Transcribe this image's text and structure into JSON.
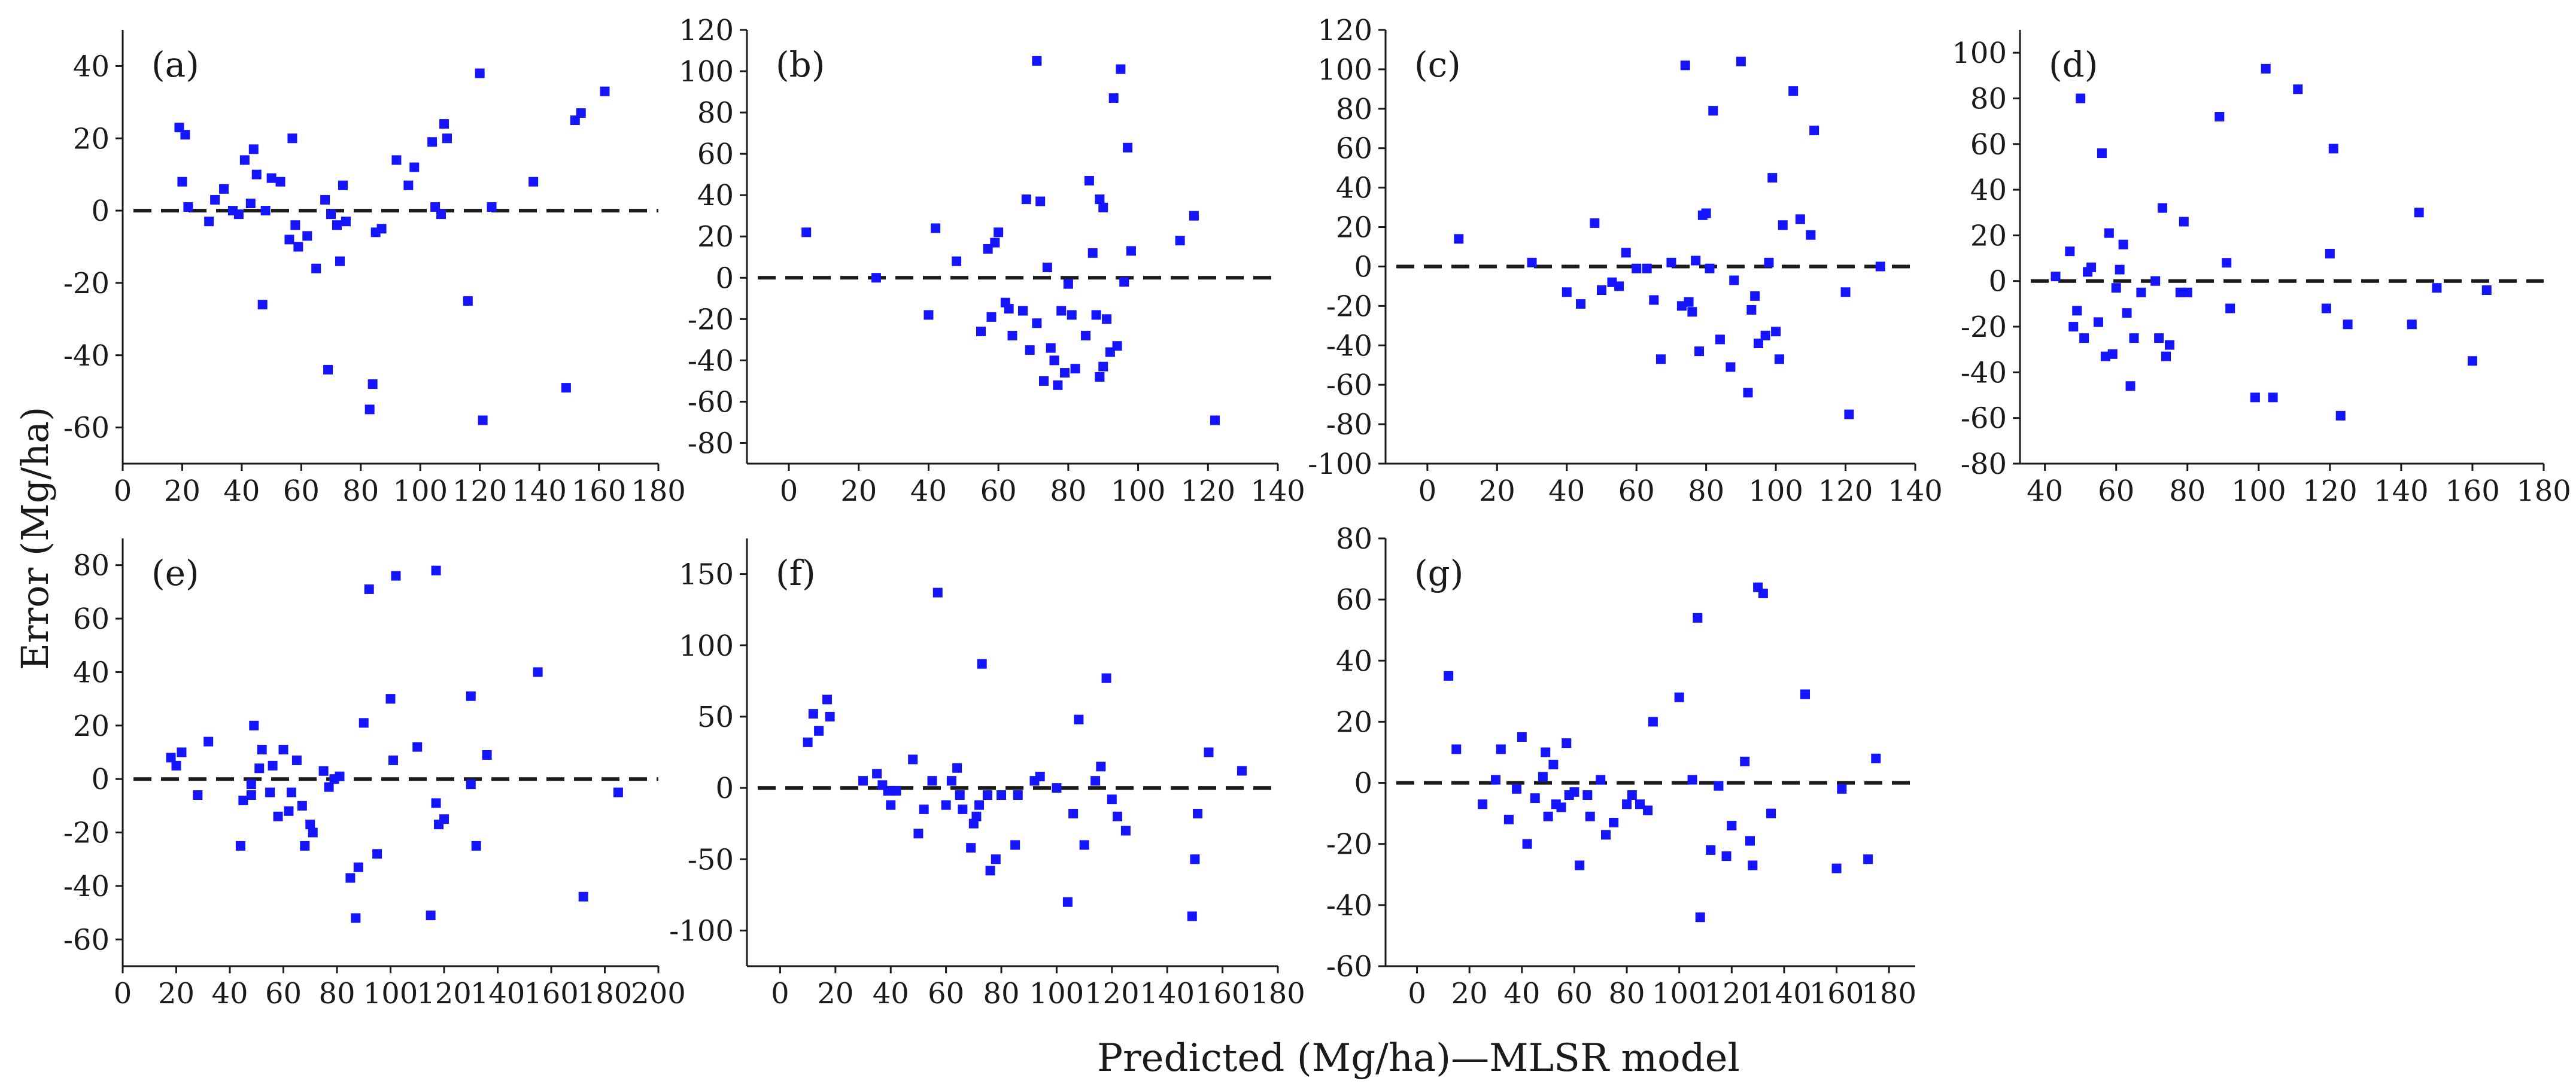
{
  "figure": {
    "ylabel": "Error (Mg/ha)",
    "xlabel": "Predicted (Mg/ha)—MLSR model",
    "colors": {
      "marker": "#1414ff",
      "axis": "#1a1a1a",
      "zero_line": "#1a1a1a"
    }
  },
  "chart_data": [
    {
      "type": "scatter",
      "title": "(a)",
      "xlim": [
        0,
        180
      ],
      "ylim": [
        -70,
        50
      ],
      "xticks": [
        0,
        20,
        40,
        60,
        80,
        100,
        120,
        140,
        160,
        180
      ],
      "yticks": [
        -60,
        -40,
        -20,
        0,
        20,
        40
      ],
      "reference_line": 0,
      "points": [
        [
          19,
          23
        ],
        [
          21,
          21
        ],
        [
          20,
          8
        ],
        [
          22,
          1
        ],
        [
          29,
          -3
        ],
        [
          31,
          3
        ],
        [
          34,
          6
        ],
        [
          37,
          0
        ],
        [
          39,
          -1
        ],
        [
          41,
          14
        ],
        [
          43,
          2
        ],
        [
          44,
          17
        ],
        [
          45,
          10
        ],
        [
          47,
          -26
        ],
        [
          48,
          0
        ],
        [
          50,
          9
        ],
        [
          53,
          8
        ],
        [
          56,
          -8
        ],
        [
          57,
          20
        ],
        [
          58,
          -4
        ],
        [
          59,
          -10
        ],
        [
          62,
          -7
        ],
        [
          65,
          -16
        ],
        [
          68,
          3
        ],
        [
          69,
          -44
        ],
        [
          70,
          -1
        ],
        [
          72,
          -4
        ],
        [
          73,
          -14
        ],
        [
          74,
          7
        ],
        [
          75,
          -3
        ],
        [
          83,
          -55
        ],
        [
          84,
          -48
        ],
        [
          85,
          -6
        ],
        [
          87,
          -5
        ],
        [
          92,
          14
        ],
        [
          96,
          7
        ],
        [
          98,
          12
        ],
        [
          104,
          19
        ],
        [
          105,
          1
        ],
        [
          107,
          -1
        ],
        [
          108,
          24
        ],
        [
          109,
          20
        ],
        [
          116,
          -25
        ],
        [
          120,
          38
        ],
        [
          121,
          -58
        ],
        [
          124,
          1
        ],
        [
          138,
          8
        ],
        [
          149,
          -49
        ],
        [
          152,
          25
        ],
        [
          154,
          27
        ],
        [
          162,
          33
        ]
      ]
    },
    {
      "type": "scatter",
      "title": "(b)",
      "xlim": [
        -12,
        140
      ],
      "ylim": [
        -90,
        120
      ],
      "xticks": [
        0,
        20,
        40,
        60,
        80,
        100,
        120,
        140
      ],
      "yticks": [
        -80,
        -60,
        -40,
        -20,
        0,
        20,
        40,
        60,
        80,
        100,
        120
      ],
      "reference_line": 0,
      "points": [
        [
          5,
          22
        ],
        [
          25,
          0
        ],
        [
          40,
          -18
        ],
        [
          42,
          24
        ],
        [
          48,
          8
        ],
        [
          55,
          -26
        ],
        [
          57,
          14
        ],
        [
          58,
          -19
        ],
        [
          59,
          17
        ],
        [
          60,
          22
        ],
        [
          62,
          -12
        ],
        [
          63,
          -15
        ],
        [
          64,
          -28
        ],
        [
          67,
          -16
        ],
        [
          68,
          38
        ],
        [
          69,
          -35
        ],
        [
          71,
          -22
        ],
        [
          71,
          105
        ],
        [
          72,
          37
        ],
        [
          73,
          -50
        ],
        [
          74,
          5
        ],
        [
          75,
          -34
        ],
        [
          76,
          -40
        ],
        [
          77,
          -52
        ],
        [
          78,
          -16
        ],
        [
          79,
          -46
        ],
        [
          80,
          -3
        ],
        [
          81,
          -18
        ],
        [
          82,
          -44
        ],
        [
          85,
          -28
        ],
        [
          86,
          47
        ],
        [
          87,
          12
        ],
        [
          88,
          -18
        ],
        [
          89,
          38
        ],
        [
          89,
          -48
        ],
        [
          90,
          -43
        ],
        [
          90,
          34
        ],
        [
          91,
          -20
        ],
        [
          92,
          -36
        ],
        [
          93,
          87
        ],
        [
          94,
          -33
        ],
        [
          95,
          101
        ],
        [
          96,
          -2
        ],
        [
          97,
          63
        ],
        [
          98,
          13
        ],
        [
          112,
          18
        ],
        [
          116,
          30
        ],
        [
          122,
          -69
        ]
      ]
    },
    {
      "type": "scatter",
      "title": "(c)",
      "xlim": [
        -12,
        140
      ],
      "ylim": [
        -100,
        120
      ],
      "xticks": [
        0,
        20,
        40,
        60,
        80,
        100,
        120,
        140
      ],
      "yticks": [
        -100,
        -80,
        -60,
        -40,
        -20,
        0,
        20,
        40,
        60,
        80,
        100,
        120
      ],
      "reference_line": 0,
      "points": [
        [
          9,
          14
        ],
        [
          30,
          2
        ],
        [
          40,
          -13
        ],
        [
          44,
          -19
        ],
        [
          48,
          22
        ],
        [
          50,
          -12
        ],
        [
          53,
          -8
        ],
        [
          55,
          -10
        ],
        [
          57,
          7
        ],
        [
          60,
          -1
        ],
        [
          63,
          -1
        ],
        [
          65,
          -17
        ],
        [
          67,
          -47
        ],
        [
          70,
          2
        ],
        [
          73,
          -20
        ],
        [
          74,
          102
        ],
        [
          75,
          -18
        ],
        [
          76,
          -23
        ],
        [
          77,
          3
        ],
        [
          78,
          -43
        ],
        [
          79,
          26
        ],
        [
          80,
          27
        ],
        [
          81,
          -1
        ],
        [
          82,
          79
        ],
        [
          84,
          -37
        ],
        [
          87,
          -51
        ],
        [
          88,
          -7
        ],
        [
          90,
          104
        ],
        [
          92,
          -64
        ],
        [
          93,
          -22
        ],
        [
          94,
          -15
        ],
        [
          95,
          -39
        ],
        [
          97,
          -35
        ],
        [
          98,
          2
        ],
        [
          99,
          45
        ],
        [
          100,
          -33
        ],
        [
          101,
          -47
        ],
        [
          102,
          21
        ],
        [
          105,
          89
        ],
        [
          107,
          24
        ],
        [
          110,
          16
        ],
        [
          111,
          69
        ],
        [
          120,
          -13
        ],
        [
          121,
          -75
        ],
        [
          130,
          0
        ]
      ]
    },
    {
      "type": "scatter",
      "title": "(d)",
      "xlim": [
        33,
        180
      ],
      "ylim": [
        -80,
        110
      ],
      "xticks": [
        40,
        60,
        80,
        100,
        120,
        140,
        160,
        180
      ],
      "yticks": [
        -80,
        -60,
        -40,
        -20,
        0,
        20,
        40,
        60,
        80,
        100
      ],
      "reference_line": 0,
      "points": [
        [
          43,
          2
        ],
        [
          47,
          13
        ],
        [
          48,
          -20
        ],
        [
          49,
          -13
        ],
        [
          50,
          80
        ],
        [
          51,
          -25
        ],
        [
          52,
          4
        ],
        [
          53,
          6
        ],
        [
          55,
          -18
        ],
        [
          56,
          56
        ],
        [
          57,
          -33
        ],
        [
          58,
          21
        ],
        [
          59,
          -32
        ],
        [
          60,
          -3
        ],
        [
          61,
          5
        ],
        [
          62,
          16
        ],
        [
          63,
          -14
        ],
        [
          64,
          -46
        ],
        [
          65,
          -25
        ],
        [
          67,
          -5
        ],
        [
          71,
          0
        ],
        [
          72,
          -25
        ],
        [
          73,
          32
        ],
        [
          74,
          -33
        ],
        [
          75,
          -28
        ],
        [
          78,
          -5
        ],
        [
          79,
          26
        ],
        [
          80,
          -5
        ],
        [
          89,
          72
        ],
        [
          91,
          8
        ],
        [
          92,
          -12
        ],
        [
          99,
          -51
        ],
        [
          102,
          93
        ],
        [
          104,
          -51
        ],
        [
          111,
          84
        ],
        [
          119,
          -12
        ],
        [
          120,
          12
        ],
        [
          121,
          58
        ],
        [
          123,
          -59
        ],
        [
          125,
          -19
        ],
        [
          143,
          -19
        ],
        [
          145,
          30
        ],
        [
          150,
          -3
        ],
        [
          160,
          -35
        ],
        [
          164,
          -4
        ]
      ]
    },
    {
      "type": "scatter",
      "title": "(e)",
      "xlim": [
        0,
        200
      ],
      "ylim": [
        -70,
        90
      ],
      "xticks": [
        0,
        20,
        40,
        60,
        80,
        100,
        120,
        140,
        160,
        180,
        200
      ],
      "yticks": [
        -60,
        -40,
        -20,
        0,
        20,
        40,
        60,
        80
      ],
      "reference_line": 0,
      "points": [
        [
          18,
          8
        ],
        [
          20,
          5
        ],
        [
          22,
          10
        ],
        [
          28,
          -6
        ],
        [
          32,
          14
        ],
        [
          44,
          -25
        ],
        [
          45,
          -8
        ],
        [
          48,
          -6
        ],
        [
          48,
          -2
        ],
        [
          49,
          20
        ],
        [
          51,
          4
        ],
        [
          52,
          11
        ],
        [
          55,
          -5
        ],
        [
          56,
          5
        ],
        [
          58,
          -14
        ],
        [
          60,
          11
        ],
        [
          62,
          -12
        ],
        [
          63,
          -5
        ],
        [
          65,
          7
        ],
        [
          67,
          -10
        ],
        [
          68,
          -25
        ],
        [
          70,
          -17
        ],
        [
          71,
          -20
        ],
        [
          75,
          3
        ],
        [
          77,
          -3
        ],
        [
          79,
          0
        ],
        [
          81,
          1
        ],
        [
          85,
          -37
        ],
        [
          87,
          -52
        ],
        [
          88,
          -33
        ],
        [
          90,
          21
        ],
        [
          92,
          71
        ],
        [
          95,
          -28
        ],
        [
          100,
          30
        ],
        [
          101,
          7
        ],
        [
          102,
          76
        ],
        [
          110,
          12
        ],
        [
          115,
          -51
        ],
        [
          117,
          -9
        ],
        [
          117,
          78
        ],
        [
          118,
          -17
        ],
        [
          120,
          -15
        ],
        [
          130,
          -2
        ],
        [
          130,
          31
        ],
        [
          132,
          -25
        ],
        [
          136,
          9
        ],
        [
          155,
          40
        ],
        [
          172,
          -44
        ],
        [
          185,
          -5
        ]
      ]
    },
    {
      "type": "scatter",
      "title": "(f)",
      "xlim": [
        -12,
        180
      ],
      "ylim": [
        -125,
        175
      ],
      "xticks": [
        0,
        20,
        40,
        60,
        80,
        100,
        120,
        140,
        160,
        180
      ],
      "yticks": [
        -100,
        -50,
        0,
        50,
        100,
        150
      ],
      "reference_line": 0,
      "points": [
        [
          10,
          32
        ],
        [
          12,
          52
        ],
        [
          14,
          40
        ],
        [
          17,
          62
        ],
        [
          18,
          50
        ],
        [
          30,
          5
        ],
        [
          35,
          10
        ],
        [
          37,
          2
        ],
        [
          39,
          -2
        ],
        [
          40,
          -12
        ],
        [
          42,
          -2
        ],
        [
          48,
          20
        ],
        [
          50,
          -32
        ],
        [
          52,
          -15
        ],
        [
          55,
          5
        ],
        [
          57,
          137
        ],
        [
          60,
          -12
        ],
        [
          62,
          5
        ],
        [
          64,
          14
        ],
        [
          65,
          -5
        ],
        [
          66,
          -15
        ],
        [
          69,
          -42
        ],
        [
          70,
          -25
        ],
        [
          71,
          -20
        ],
        [
          72,
          -12
        ],
        [
          73,
          87
        ],
        [
          75,
          -5
        ],
        [
          76,
          -58
        ],
        [
          78,
          -50
        ],
        [
          80,
          -5
        ],
        [
          85,
          -40
        ],
        [
          86,
          -5
        ],
        [
          92,
          5
        ],
        [
          94,
          8
        ],
        [
          100,
          0
        ],
        [
          104,
          -80
        ],
        [
          106,
          -18
        ],
        [
          108,
          48
        ],
        [
          110,
          -40
        ],
        [
          114,
          5
        ],
        [
          116,
          15
        ],
        [
          118,
          77
        ],
        [
          120,
          -8
        ],
        [
          122,
          -20
        ],
        [
          125,
          -30
        ],
        [
          149,
          -90
        ],
        [
          150,
          -50
        ],
        [
          151,
          -18
        ],
        [
          155,
          25
        ],
        [
          167,
          12
        ]
      ]
    },
    {
      "type": "scatter",
      "title": "(g)",
      "xlim": [
        -12,
        190
      ],
      "ylim": [
        -60,
        80
      ],
      "xticks": [
        0,
        20,
        40,
        60,
        80,
        100,
        120,
        140,
        160,
        180
      ],
      "yticks": [
        -60,
        -40,
        -20,
        0,
        20,
        40,
        60,
        80
      ],
      "reference_line": 0,
      "points": [
        [
          12,
          35
        ],
        [
          15,
          11
        ],
        [
          25,
          -7
        ],
        [
          30,
          1
        ],
        [
          32,
          11
        ],
        [
          35,
          -12
        ],
        [
          38,
          -2
        ],
        [
          40,
          15
        ],
        [
          42,
          -20
        ],
        [
          45,
          -5
        ],
        [
          48,
          2
        ],
        [
          49,
          10
        ],
        [
          50,
          -11
        ],
        [
          52,
          6
        ],
        [
          53,
          -7
        ],
        [
          55,
          -8
        ],
        [
          57,
          13
        ],
        [
          58,
          -4
        ],
        [
          60,
          -3
        ],
        [
          62,
          -27
        ],
        [
          65,
          -4
        ],
        [
          66,
          -11
        ],
        [
          70,
          1
        ],
        [
          72,
          -17
        ],
        [
          75,
          -13
        ],
        [
          80,
          -7
        ],
        [
          82,
          -4
        ],
        [
          85,
          -7
        ],
        [
          88,
          -9
        ],
        [
          90,
          20
        ],
        [
          100,
          28
        ],
        [
          105,
          1
        ],
        [
          107,
          54
        ],
        [
          108,
          -44
        ],
        [
          112,
          -22
        ],
        [
          115,
          -1
        ],
        [
          118,
          -24
        ],
        [
          120,
          -14
        ],
        [
          125,
          7
        ],
        [
          127,
          -19
        ],
        [
          128,
          -27
        ],
        [
          130,
          64
        ],
        [
          132,
          62
        ],
        [
          135,
          -10
        ],
        [
          148,
          29
        ],
        [
          160,
          -28
        ],
        [
          162,
          -2
        ],
        [
          172,
          -25
        ],
        [
          175,
          8
        ]
      ]
    }
  ]
}
